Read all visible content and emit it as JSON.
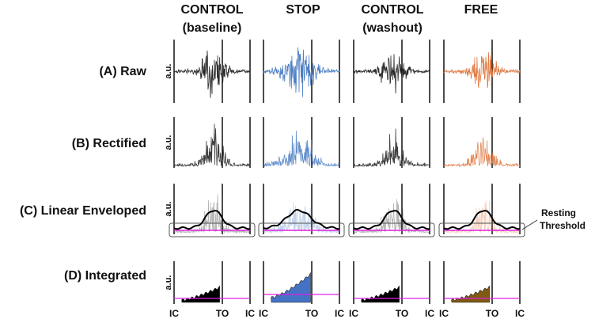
{
  "columns": [
    {
      "line1": "CONTROL",
      "line2": "(baseline)",
      "color": "#2a2a2a",
      "fill": "#000000"
    },
    {
      "line1": "STOP",
      "line2": "",
      "color": "#4f7fc4",
      "fill": "#4472c4"
    },
    {
      "line1": "CONTROL",
      "line2": "(washout)",
      "color": "#2a2a2a",
      "fill": "#000000"
    },
    {
      "line1": "FREE",
      "line2": "",
      "color": "#e07b45",
      "fill": "#7f5a12"
    }
  ],
  "rows": [
    {
      "label": "(A) Raw",
      "kind": "raw"
    },
    {
      "label": "(B) Rectified",
      "kind": "rectified"
    },
    {
      "label": "(C) Linear Enveloped",
      "kind": "envelope"
    },
    {
      "label": "(D) Integrated",
      "kind": "integrated"
    }
  ],
  "y_axis_label": "a.u.",
  "x_tick_labels": [
    "IC",
    "TO",
    "IC"
  ],
  "annotation": {
    "line1": "Resting",
    "line2": "Threshold"
  },
  "threshold_color": "#e020e0",
  "envelope_color": "#000000"
}
